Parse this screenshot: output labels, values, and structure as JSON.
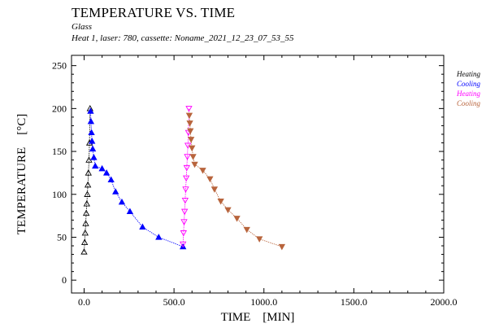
{
  "chart_data": {
    "type": "scatter",
    "title": "TEMPERATURE VS. TIME",
    "subtitle": [
      "Glass",
      "Heat 1, laser: 780, cassette: Noname_2021_12_23_07_53_55"
    ],
    "xlabel": "TIME    [MIN]",
    "ylabel": "TEMPERATURE    [°C]",
    "xlim": [
      -70,
      2000
    ],
    "ylim": [
      -15,
      262
    ],
    "x_ticks": [
      {
        "value": 0,
        "label": "0.0"
      },
      {
        "value": 500,
        "label": "500.0"
      },
      {
        "value": 1000,
        "label": "1000.0"
      },
      {
        "value": 1500,
        "label": "1500.0"
      },
      {
        "value": 2000,
        "label": "2000.0"
      }
    ],
    "y_ticks": [
      {
        "value": 0,
        "label": "0"
      },
      {
        "value": 50,
        "label": "50"
      },
      {
        "value": 100,
        "label": "100"
      },
      {
        "value": 150,
        "label": "150"
      },
      {
        "value": 200,
        "label": "200"
      },
      {
        "value": 250,
        "label": "250"
      }
    ],
    "grid": false,
    "legend_position": "right",
    "series": [
      {
        "name": "Heating",
        "color": "#000000",
        "marker": "triangle-up-open",
        "x": [
          0,
          3,
          6,
          9,
          12,
          15,
          18,
          21,
          24,
          27,
          30,
          33
        ],
        "y": [
          33,
          44,
          55,
          66,
          78,
          89,
          100,
          111,
          125,
          140,
          160,
          200
        ]
      },
      {
        "name": "Cooling",
        "color": "#0000ff",
        "marker": "triangle-up-filled",
        "x": [
          36,
          38,
          41,
          44,
          48,
          54,
          62,
          100,
          125,
          150,
          175,
          210,
          255,
          325,
          415,
          550
        ],
        "y": [
          197,
          185,
          172,
          162,
          153,
          143,
          133,
          130,
          125,
          117,
          103,
          91,
          80,
          62,
          50,
          39
        ]
      },
      {
        "name": "Heating",
        "color": "#ff00ff",
        "marker": "triangle-down-open",
        "x": [
          550,
          553,
          556,
          559,
          562,
          565,
          568,
          571,
          574,
          577,
          580,
          583
        ],
        "y": [
          42,
          55,
          68,
          80,
          93,
          106,
          119,
          131,
          144,
          157,
          172,
          200
        ]
      },
      {
        "name": "Cooling",
        "color": "#b8643c",
        "marker": "triangle-down-filled",
        "x": [
          585,
          588,
          591,
          595,
          600,
          606,
          615,
          660,
          700,
          725,
          760,
          800,
          850,
          905,
          975,
          1100
        ],
        "y": [
          192,
          183,
          174,
          164,
          154,
          144,
          135,
          128,
          118,
          106,
          92,
          82,
          72,
          59,
          48,
          39
        ]
      }
    ]
  }
}
